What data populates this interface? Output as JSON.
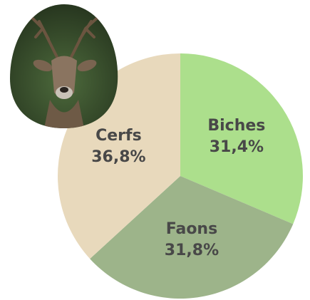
{
  "chart_data": {
    "type": "pie",
    "categories": [
      "Biches",
      "Faons",
      "Cerfs"
    ],
    "values": [
      31.4,
      31.8,
      36.8
    ],
    "value_labels": [
      "31,4%",
      "31,8%",
      "36,8%"
    ],
    "colors": [
      "#acdf8c",
      "#9db48a",
      "#e8d9bc"
    ]
  }
}
